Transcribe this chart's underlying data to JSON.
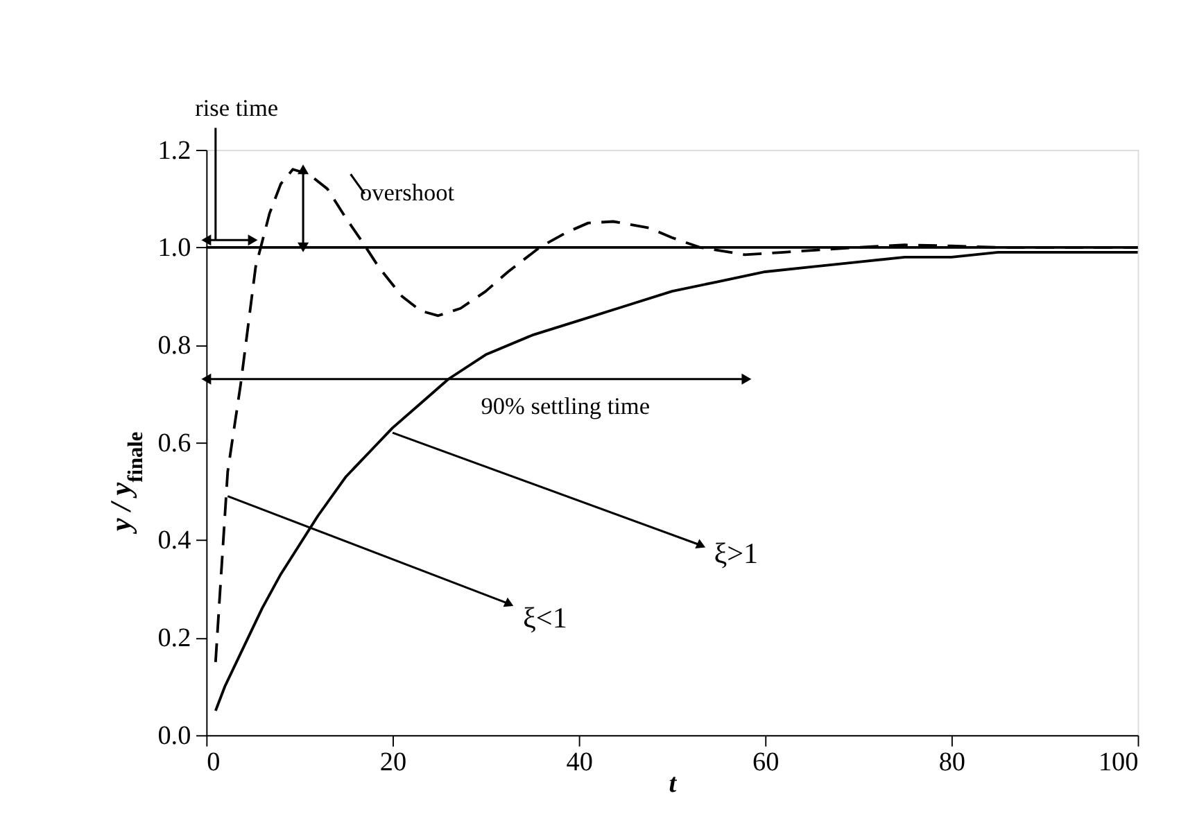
{
  "chart_data": {
    "type": "line",
    "xlabel": "t",
    "ylabel": "y / y$_{finale}$",
    "xlim": [
      0,
      100
    ],
    "xticks": [
      0,
      20,
      40,
      60,
      80,
      100
    ],
    "ylim": [
      0,
      1.2
    ],
    "yticks": [
      {
        "value": 0,
        "label": "0.0"
      },
      {
        "value": 0.2,
        "label": "0.2"
      },
      {
        "value": 0.4,
        "label": "0.4"
      },
      {
        "value": 0.6,
        "label": "0.6"
      },
      {
        "value": 0.8,
        "label": "0.8"
      },
      {
        "value": 1.0,
        "label": "1.0"
      },
      {
        "value": 1.2,
        "label": "1.2"
      }
    ],
    "series": [
      {
        "color": "#000000",
        "line_style": "solid",
        "x": [
          1,
          2,
          4,
          6,
          8,
          10,
          12,
          15,
          18,
          20,
          23,
          26,
          30,
          35,
          40,
          45,
          50,
          55,
          60,
          65,
          70,
          75,
          80,
          85,
          90,
          95,
          100
        ],
        "values": [
          0.05,
          0.1,
          0.18,
          0.26,
          0.33,
          0.39,
          0.45,
          0.53,
          0.59,
          0.63,
          0.68,
          0.73,
          0.78,
          0.82,
          0.85,
          0.88,
          0.91,
          0.93,
          0.95,
          0.96,
          0.97,
          0.98,
          0.98,
          0.99,
          0.99,
          0.99,
          0.99
        ]
      },
      {
        "color": "#000000",
        "line_style": "dashed",
        "x": [
          1,
          2.3,
          3.7,
          5.3,
          6.8,
          8,
          9.3,
          11,
          13,
          15,
          16.8,
          18.5,
          21,
          23,
          24.9,
          27.3,
          30,
          32.4,
          35.8,
          38.6,
          41,
          43.7,
          47.5,
          50,
          53,
          57.8,
          62,
          66,
          70,
          75,
          80,
          85,
          90,
          95,
          100
        ],
        "values": [
          0.15,
          0.54,
          0.72,
          0.96,
          1.07,
          1.13,
          1.16,
          1.15,
          1.12,
          1.06,
          1.01,
          0.96,
          0.9,
          0.87,
          0.86,
          0.875,
          0.91,
          0.95,
          1.0,
          1.03,
          1.05,
          1.053,
          1.04,
          1.02,
          1.0,
          0.985,
          0.99,
          0.995,
          1.0,
          1.005,
          1.003,
          1.0,
          1.0,
          1.0,
          1.0
        ]
      }
    ],
    "ref_lines": [
      {
        "axis": "y",
        "value": 1.0,
        "color": "#000000",
        "line_style": "solid"
      }
    ],
    "annotations": [
      "rise time",
      "overshoot",
      "90% settling time",
      "ξ>1",
      "ξ<1"
    ],
    "grid": false,
    "marker": "none"
  }
}
